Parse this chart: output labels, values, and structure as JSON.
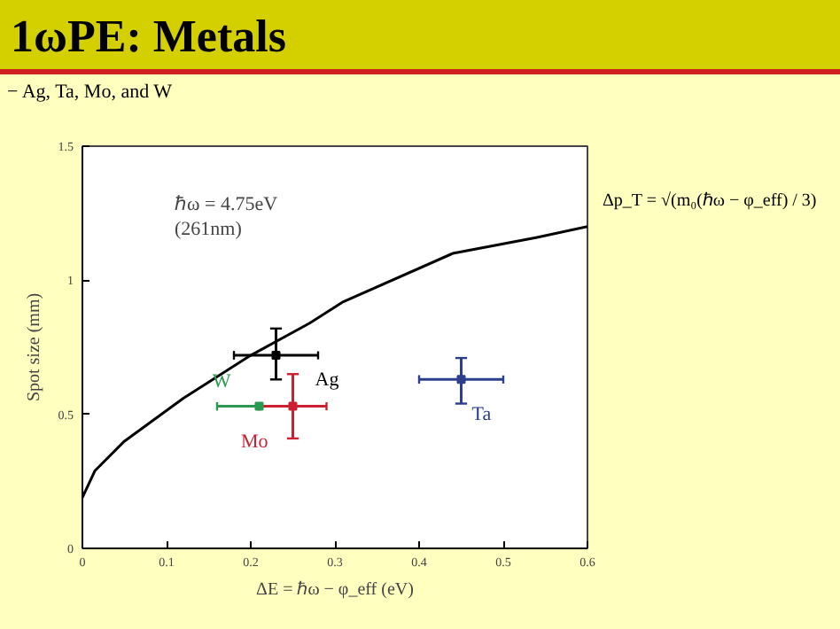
{
  "chart_data": {
    "type": "scatter",
    "title": "1ωPE: Metals",
    "subtitle": "− Ag, Ta, Mo, and W",
    "xlabel": "ΔE = ℏω − φ_eff (eV)",
    "ylabel": "Spot size (mm)",
    "annotations": [
      "ℏω = 4.75eV",
      "(261nm)",
      "Δp_T = √(m₀(ℏω − φ_eff) / 3)"
    ],
    "xlim": [
      0,
      0.6
    ],
    "ylim": [
      0,
      1.5
    ],
    "xticks": [
      0,
      0.1,
      0.2,
      0.3,
      0.4,
      0.5,
      0.6
    ],
    "yticks": [
      0,
      0.5,
      1,
      1.5
    ],
    "grid": false,
    "legend": false,
    "series": [
      {
        "type": "line",
        "color": "#000000",
        "x": [
          0,
          0.015,
          0.05,
          0.12,
          0.2,
          0.27,
          0.31,
          0.44,
          0.54,
          0.6
        ],
        "values": [
          0.19,
          0.29,
          0.4,
          0.56,
          0.72,
          0.84,
          0.92,
          1.1,
          1.16,
          1.2
        ]
      },
      {
        "name": "Ag",
        "color": "#000000",
        "x": [
          0.23
        ],
        "values": [
          0.72
        ],
        "xerrors": [
          0.05
        ],
        "errors": [
          [
            0.63,
            0.82
          ]
        ]
      },
      {
        "name": "Ta",
        "color": "#2c3e8c",
        "x": [
          0.45
        ],
        "values": [
          0.63
        ],
        "xerrors": [
          0.05
        ],
        "errors": [
          [
            0.54,
            0.71
          ]
        ]
      },
      {
        "name": "Mo",
        "color": "#cc2030",
        "x": [
          0.25
        ],
        "values": [
          0.53
        ],
        "xerrors": [
          [
            0.21,
            0.29
          ]
        ],
        "errors": [
          [
            0.41,
            0.65
          ]
        ]
      },
      {
        "name": "W",
        "color": "#2a9a50",
        "x": [
          0.21
        ],
        "values": [
          0.53
        ],
        "xerrors": [
          [
            0.16,
            0.21
          ]
        ],
        "errors": [
          null
        ]
      }
    ]
  }
}
